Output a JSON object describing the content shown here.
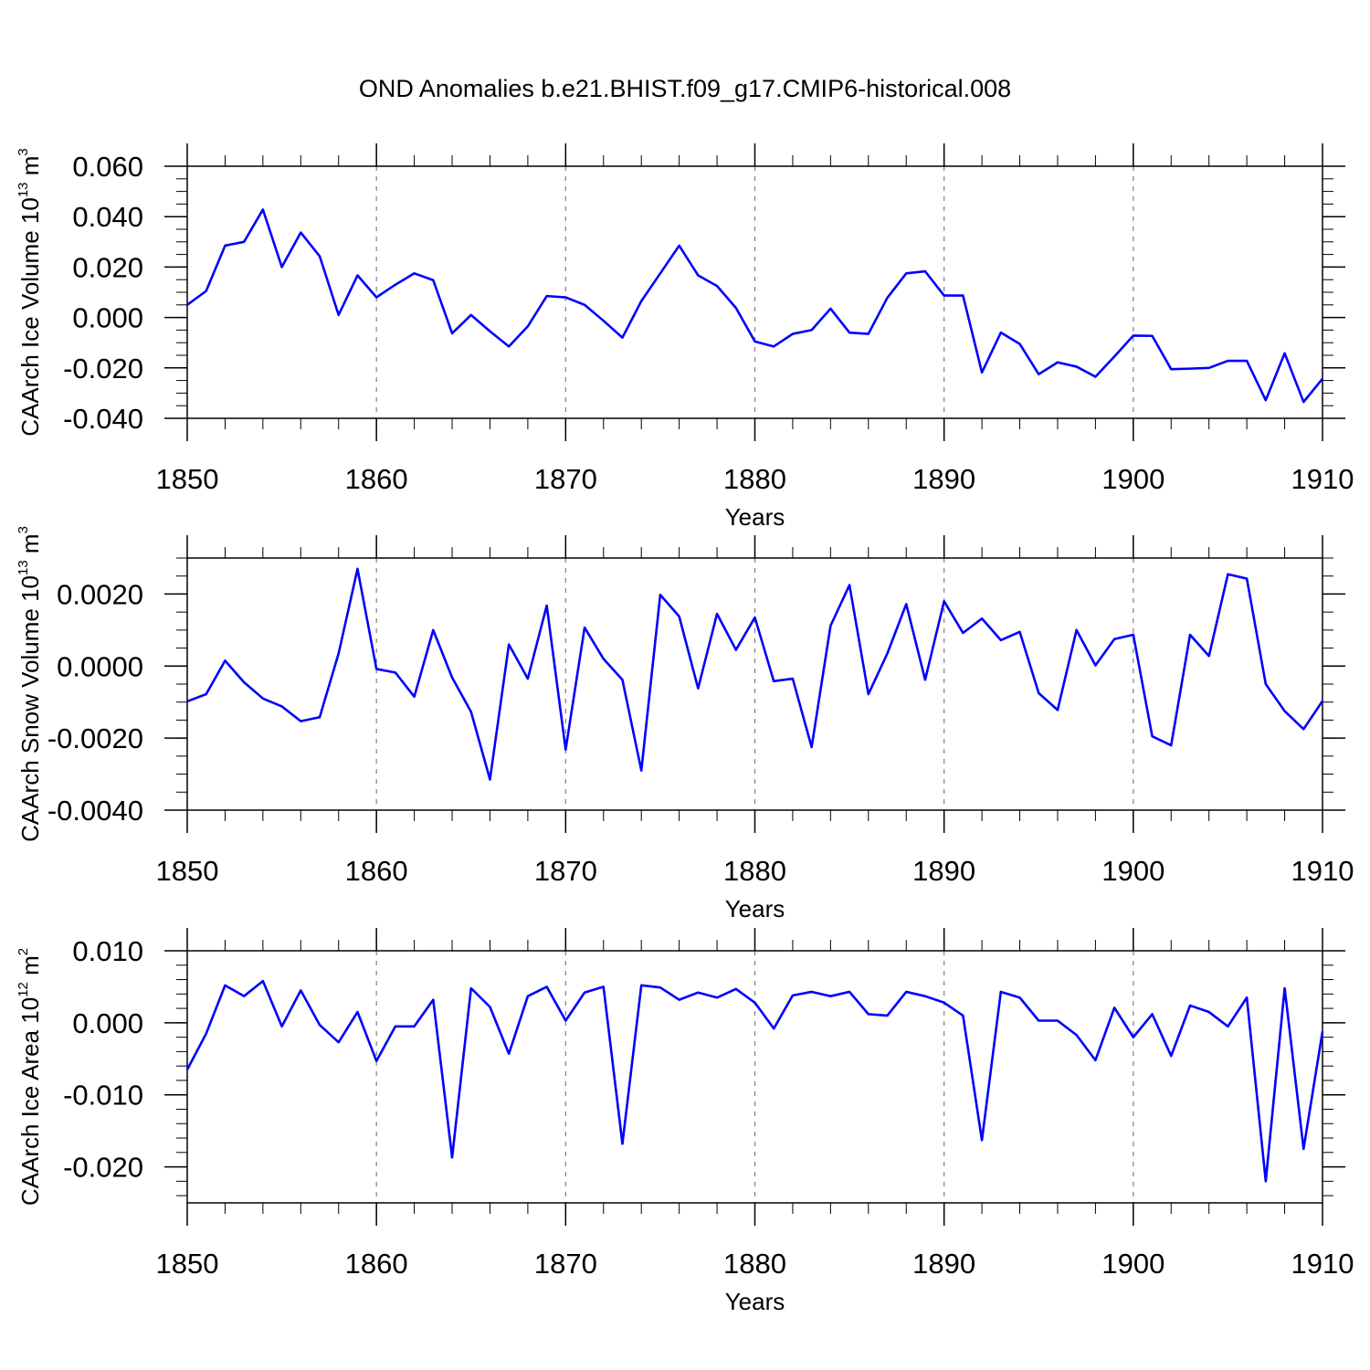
{
  "chart_data": {
    "title": "OND Anomalies b.e21.BHIST.f09_g17.CMIP6-historical.008",
    "panels": [
      {
        "type": "line",
        "xlabel": "Years",
        "ylabel": {
          "text": "CAArch Ice Volume 10",
          "exp": "13",
          "unit": " m",
          "unit_exp": "3"
        },
        "xlim": [
          1850,
          1910
        ],
        "ylim": [
          -0.04,
          0.06
        ],
        "xticks": [
          1850,
          1860,
          1870,
          1880,
          1890,
          1900,
          1910
        ],
        "xtick_labels": [
          "1850",
          "1860",
          "1870",
          "1880",
          "1890",
          "1900",
          "1910"
        ],
        "yticks": [
          -0.04,
          -0.02,
          0.0,
          0.02,
          0.04,
          0.06
        ],
        "ytick_labels": [
          "-0.040",
          "-0.020",
          "0.000",
          "0.020",
          "0.040",
          "0.060"
        ],
        "y_minor_step": 0.005,
        "grid": "vertical dashed at major x ticks",
        "color": "#0000ff",
        "x_start": 1850,
        "values": [
          0.005,
          0.0105,
          0.0285,
          0.03,
          0.0428,
          0.02,
          0.0337,
          0.0243,
          0.001,
          0.0167,
          0.008,
          0.013,
          0.0175,
          0.0148,
          -0.0063,
          0.001,
          -0.0055,
          -0.0115,
          -0.0035,
          0.0085,
          0.008,
          0.005,
          -0.0013,
          -0.008,
          0.0065,
          0.0175,
          0.0285,
          0.0167,
          0.0125,
          0.0038,
          -0.0095,
          -0.0115,
          -0.0065,
          -0.005,
          0.0035,
          -0.006,
          -0.0065,
          0.0078,
          0.0175,
          0.0183,
          0.0087,
          0.0087,
          -0.0218,
          -0.006,
          -0.0105,
          -0.0225,
          -0.0178,
          -0.0195,
          -0.0235,
          -0.0155,
          -0.0072,
          -0.0073,
          -0.0205,
          -0.0203,
          -0.02,
          -0.0172,
          -0.0172,
          -0.0328,
          -0.0142,
          -0.0335,
          -0.0243
        ]
      },
      {
        "type": "line",
        "xlabel": "Years",
        "ylabel": {
          "text": "CAArch Snow Volume 10",
          "exp": "13",
          "unit": " m",
          "unit_exp": "3"
        },
        "xlim": [
          1850,
          1910
        ],
        "ylim": [
          -0.004,
          0.003
        ],
        "xticks": [
          1850,
          1860,
          1870,
          1880,
          1890,
          1900,
          1910
        ],
        "xtick_labels": [
          "1850",
          "1860",
          "1870",
          "1880",
          "1890",
          "1900",
          "1910"
        ],
        "yticks": [
          -0.004,
          -0.002,
          0.0,
          0.002
        ],
        "ytick_labels": [
          "-0.0040",
          "-0.0020",
          "0.0000",
          "0.0020"
        ],
        "y_minor_step": 0.0005,
        "grid": "vertical dashed at major x ticks",
        "color": "#0000ff",
        "x_start": 1850,
        "values": [
          -0.00098,
          -0.00078,
          0.00015,
          -0.00045,
          -0.0009,
          -0.00112,
          -0.00153,
          -0.00142,
          0.00035,
          0.0027,
          -8e-05,
          -0.00018,
          -0.00085,
          0.001,
          -0.00032,
          -0.00127,
          -0.00315,
          0.0006,
          -0.00035,
          0.00168,
          -0.00232,
          0.00107,
          0.0002,
          -0.00038,
          -0.0029,
          0.00198,
          0.00138,
          -0.00062,
          0.00145,
          0.00045,
          0.00135,
          -0.00042,
          -0.00035,
          -0.00225,
          0.00112,
          0.00225,
          -0.00078,
          0.00035,
          0.00172,
          -0.00038,
          0.0018,
          0.00092,
          0.00132,
          0.00072,
          0.00095,
          -0.00075,
          -0.00122,
          0.001,
          2e-05,
          0.00075,
          0.00087,
          -0.00195,
          -0.0022,
          0.00087,
          0.00028,
          0.00255,
          0.00243,
          -0.0005,
          -0.00125,
          -0.00175,
          -0.00097
        ]
      },
      {
        "type": "line",
        "xlabel": "Years",
        "ylabel": {
          "text": "CAArch Ice Area 10",
          "exp": "12",
          "unit": " m",
          "unit_exp": "2"
        },
        "xlim": [
          1850,
          1910
        ],
        "ylim": [
          -0.025,
          0.01
        ],
        "xticks": [
          1850,
          1860,
          1870,
          1880,
          1890,
          1900,
          1910
        ],
        "xtick_labels": [
          "1850",
          "1860",
          "1870",
          "1880",
          "1890",
          "1900",
          "1910"
        ],
        "yticks": [
          -0.02,
          -0.01,
          0.0,
          0.01
        ],
        "ytick_labels": [
          "-0.020",
          "-0.010",
          "0.000",
          "0.010"
        ],
        "y_minor_step": 0.002,
        "grid": "vertical dashed at major x ticks",
        "color": "#0000ff",
        "x_start": 1850,
        "values": [
          -0.0065,
          -0.0015,
          0.0052,
          0.0037,
          0.0058,
          -0.0005,
          0.0045,
          -0.0003,
          -0.0027,
          0.0015,
          -0.0053,
          -0.0005,
          -0.0005,
          0.0032,
          -0.0187,
          0.0048,
          0.0022,
          -0.0043,
          0.0037,
          0.005,
          0.0003,
          0.0042,
          0.005,
          -0.0168,
          0.0052,
          0.0049,
          0.0032,
          0.0042,
          0.0035,
          0.0047,
          0.0028,
          -0.0008,
          0.0038,
          0.0043,
          0.0037,
          0.0043,
          0.0012,
          0.001,
          0.0043,
          0.0037,
          0.0028,
          0.001,
          -0.0163,
          0.0043,
          0.0035,
          0.0003,
          0.0003,
          -0.0017,
          -0.0052,
          0.0021,
          -0.002,
          0.0012,
          -0.0046,
          0.0024,
          0.0015,
          -0.0005,
          0.0035,
          -0.022,
          0.0048,
          -0.0175,
          -0.0012
        ]
      }
    ]
  }
}
